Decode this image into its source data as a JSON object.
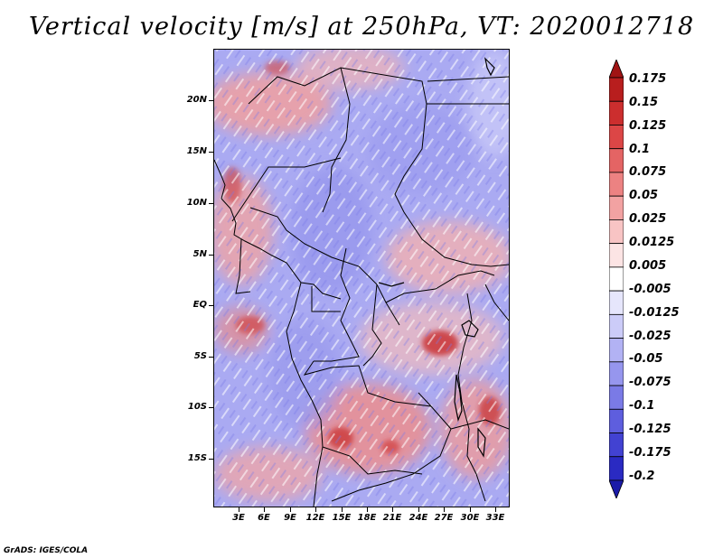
{
  "title": "Vertical velocity [m/s] at 250hPa, VT: 2020012718",
  "credit": "GrADS: IGES/COLA",
  "lat_labels": [
    "20N",
    "15N",
    "10N",
    "5N",
    "EQ",
    "5S",
    "10S",
    "15S"
  ],
  "lon_labels": [
    "3E",
    "6E",
    "9E",
    "12E",
    "15E",
    "18E",
    "21E",
    "24E",
    "27E",
    "30E",
    "33E"
  ],
  "colorbar": {
    "labels": [
      "0.175",
      "0.15",
      "0.125",
      "0.1",
      "0.075",
      "0.05",
      "0.025",
      "0.0125",
      "0.005",
      "-0.005",
      "-0.0125",
      "-0.025",
      "-0.05",
      "-0.075",
      "-0.1",
      "-0.125",
      "-0.175",
      "-0.2"
    ],
    "colors": [
      "#a01414",
      "#b81e1e",
      "#cc2e2e",
      "#dc4646",
      "#e46464",
      "#ec8282",
      "#f2a2a2",
      "#f8c4c4",
      "#fce4e4",
      "#ffffff",
      "#e6e6fc",
      "#ccccf8",
      "#b2b2f4",
      "#9696ee",
      "#7a7ae6",
      "#5e5ede",
      "#4242d2",
      "#2a2ac2",
      "#1a1aa8"
    ]
  }
}
